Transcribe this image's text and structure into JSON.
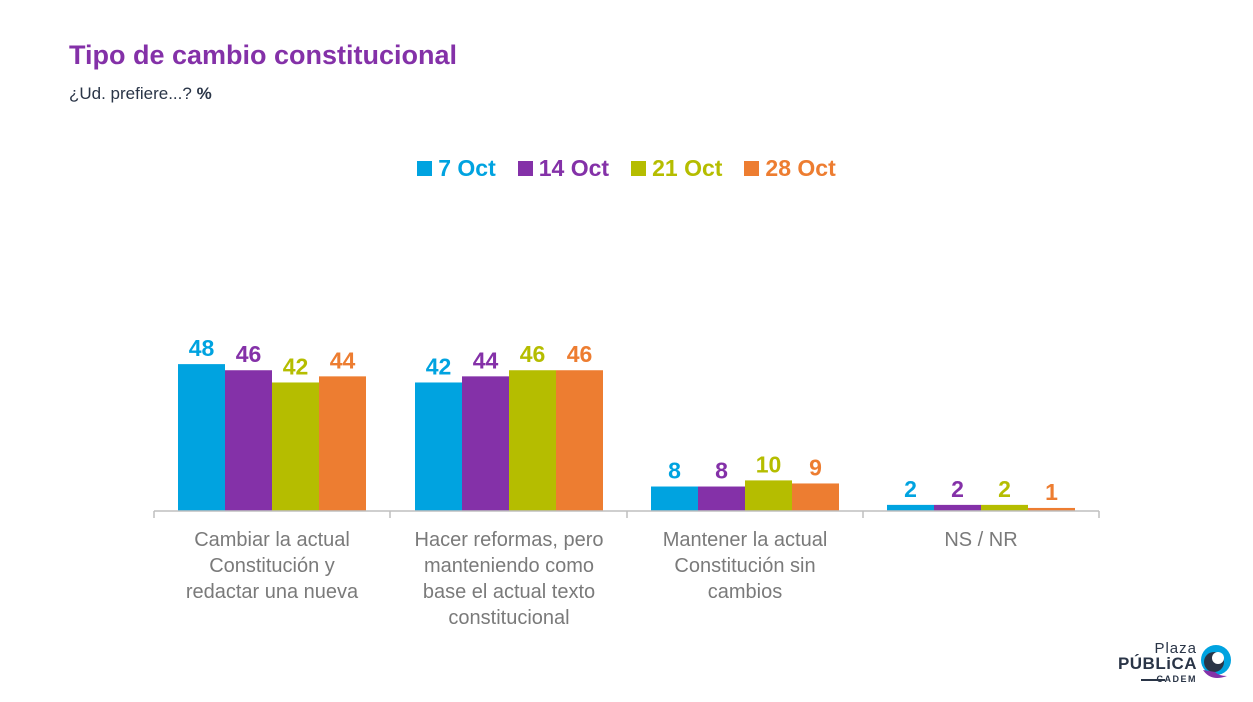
{
  "header": {
    "title": "Tipo de cambio constitucional",
    "subtitle": "¿Ud. prefiere...?",
    "unit": "%"
  },
  "logo": {
    "line1": "Plaza",
    "line2": "PÚBLiCA",
    "line3": "CADEM"
  },
  "chart_data": {
    "type": "bar",
    "title": "Tipo de cambio constitucional",
    "categories": [
      [
        "Cambiar la actual",
        "Constitución y",
        "redactar una nueva"
      ],
      [
        "Hacer reformas, pero",
        "manteniendo como",
        "base el actual texto",
        "constitucional"
      ],
      [
        "Mantener la actual",
        "Constitución sin",
        "cambios"
      ],
      [
        "NS / NR"
      ]
    ],
    "series": [
      {
        "name": "7 Oct",
        "color": "#00a3e0",
        "values": [
          48,
          42,
          8,
          2
        ]
      },
      {
        "name": "14 Oct",
        "color": "#8431a8",
        "values": [
          46,
          44,
          8,
          2
        ]
      },
      {
        "name": "21 Oct",
        "color": "#b5bd00",
        "values": [
          42,
          46,
          10,
          2
        ]
      },
      {
        "name": "28 Oct",
        "color": "#ed7d31",
        "values": [
          44,
          46,
          9,
          1
        ]
      }
    ],
    "ylim": [
      0,
      50
    ],
    "grid": false,
    "legend_position": "top-center"
  }
}
